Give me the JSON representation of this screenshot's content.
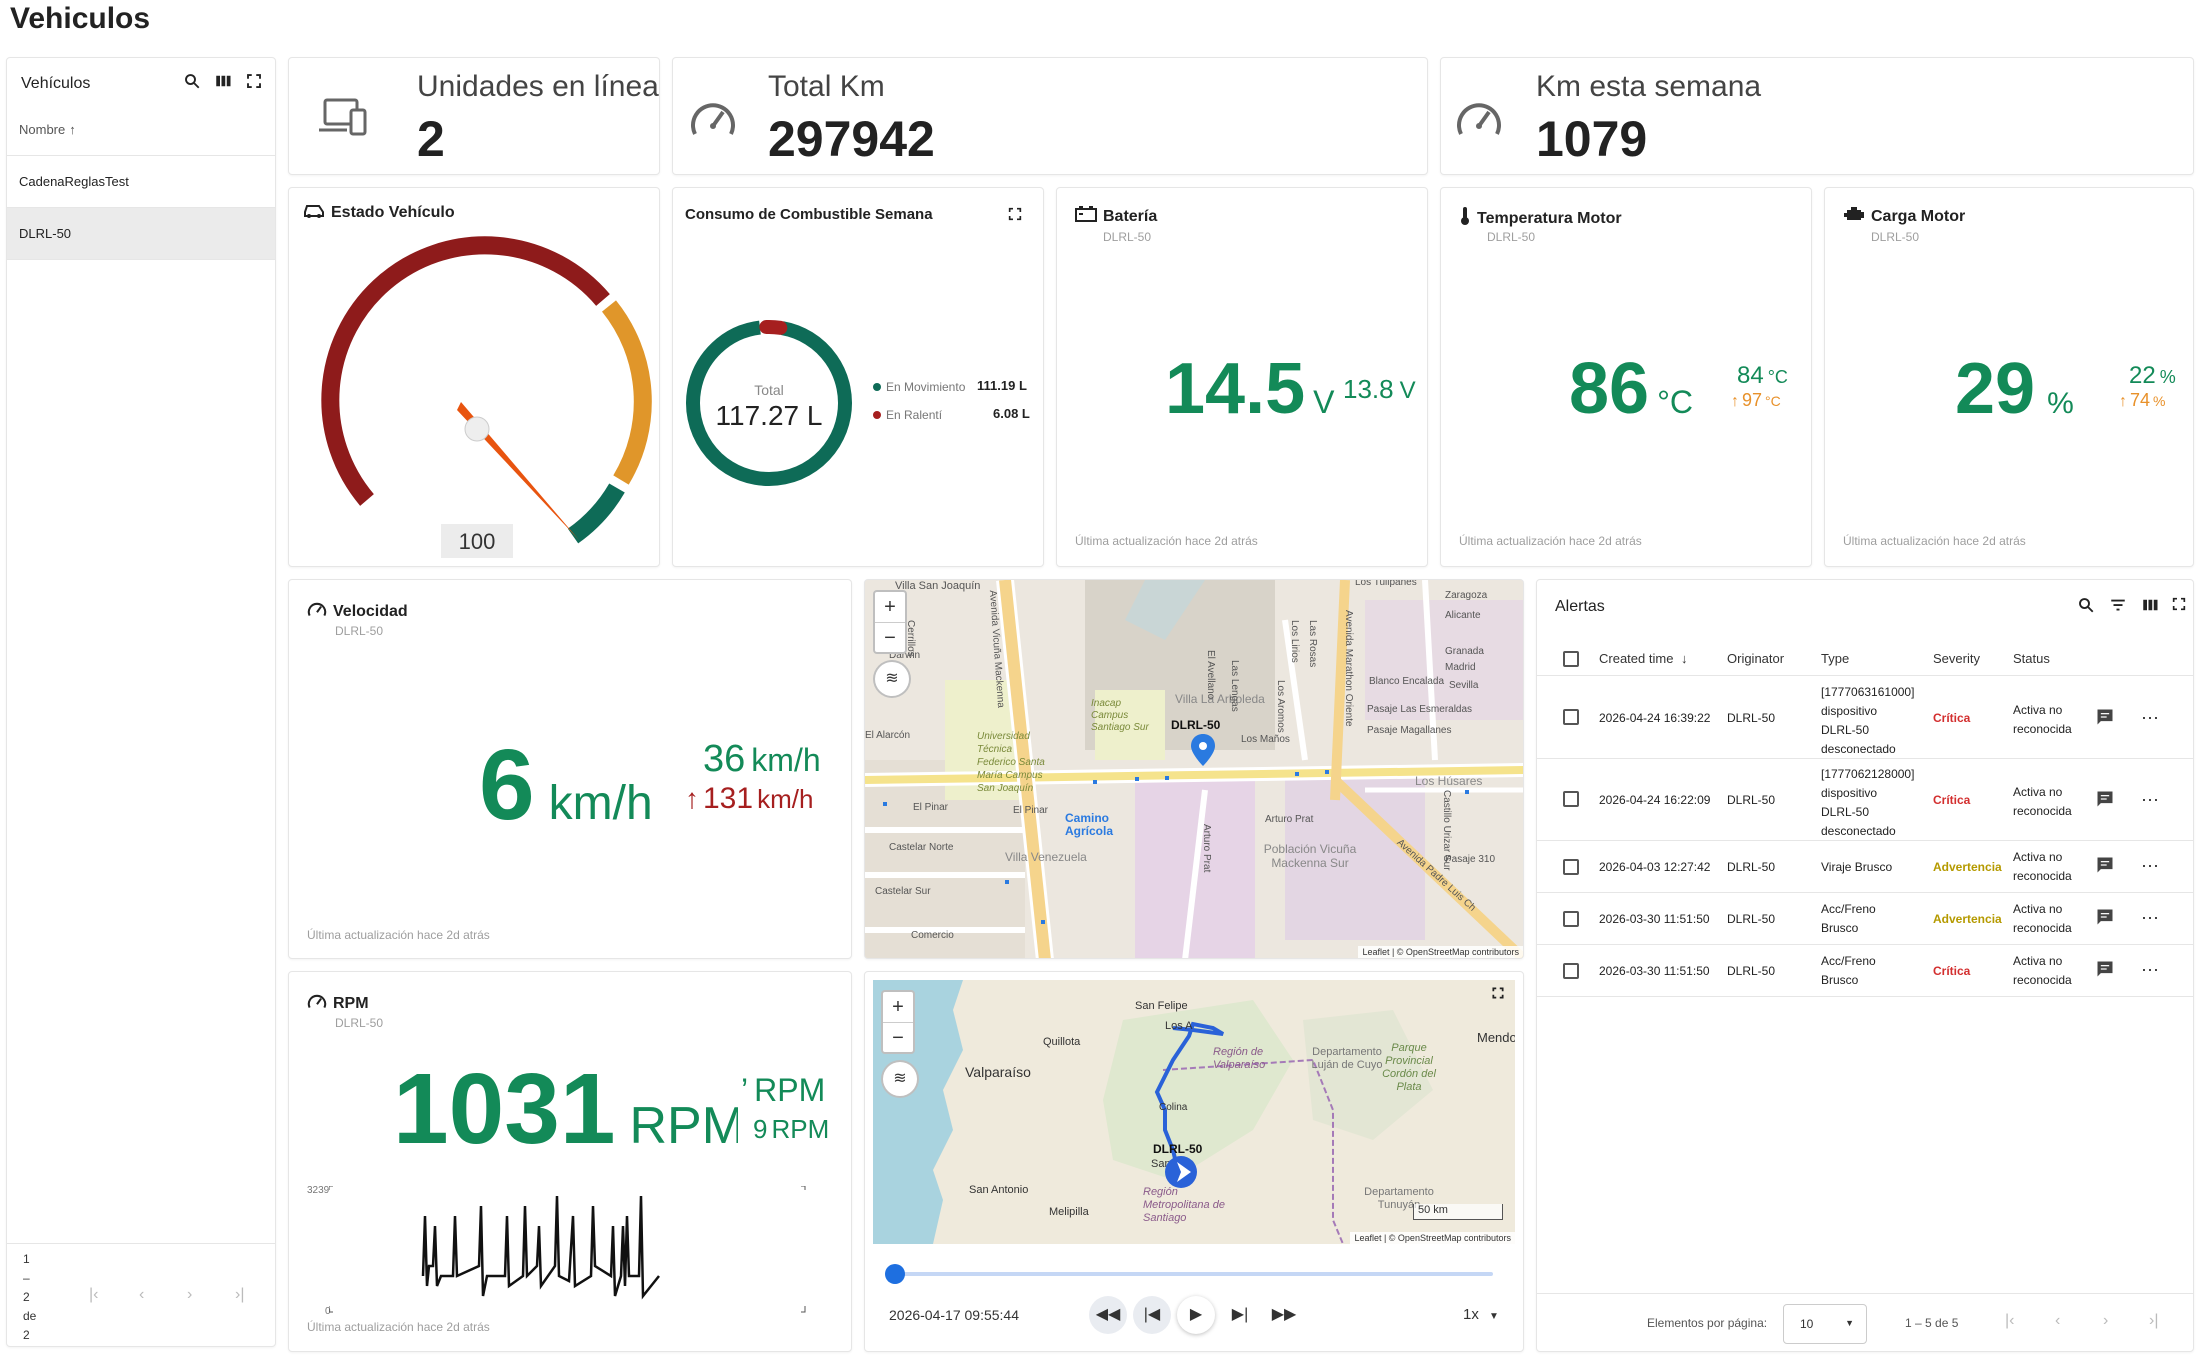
{
  "page_title": "Vehiculos",
  "sidebar": {
    "title": "Vehículos",
    "column_header": "Nombre",
    "items": [
      {
        "label": "CadenaReglasTest"
      },
      {
        "label": "DLRL-50"
      }
    ],
    "pagination": [
      "1",
      "–",
      "2",
      "de",
      "2"
    ]
  },
  "kpis": [
    {
      "label": "Unidades en línea",
      "value": "2"
    },
    {
      "label": "Total Km",
      "value": "297942"
    },
    {
      "label": "Km esta semana",
      "value": "1079"
    }
  ],
  "estado_vehiculo": {
    "title": "Estado Vehículo",
    "value": "100",
    "colors": {
      "red": "#8e1b1b",
      "orange": "#e0962a",
      "green": "#0e6b57"
    }
  },
  "combustible": {
    "title": "Consumo de Combustible Semana",
    "total_label": "Total",
    "total_value": "117.27 L",
    "legend": [
      {
        "label": "En Movimiento",
        "value": "111.19 L",
        "color": "#0e6b57"
      },
      {
        "label": "En Ralentí",
        "value": "6.08 L",
        "color": "#a61f1f"
      }
    ]
  },
  "bateria": {
    "title": "Batería",
    "device": "DLRL-50",
    "value": "14.5",
    "unit": "V",
    "secondary": "13.8",
    "secondary_unit": "V",
    "footer": "Última actualización hace 2d atrás"
  },
  "temperatura": {
    "title": "Temperatura Motor",
    "device": "DLRL-50",
    "value": "86",
    "unit": "°C",
    "min": "84",
    "min_unit": "°C",
    "max": "97",
    "max_unit": "°C",
    "footer": "Última actualización hace 2d atrás"
  },
  "carga": {
    "title": "Carga Motor",
    "device": "DLRL-50",
    "value": "29",
    "unit": "%",
    "min": "22",
    "min_unit": "%",
    "max": "74",
    "max_unit": "%",
    "footer": "Última actualización hace 2d atrás"
  },
  "velocidad": {
    "title": "Velocidad",
    "device": "DLRL-50",
    "value": "6",
    "unit": "km/h",
    "avg": "36",
    "avg_unit": "km/h",
    "max": "131",
    "max_unit": "km/h",
    "footer": "Última actualización hace 2d atrás"
  },
  "rpm": {
    "title": "RPM",
    "device": "DLRL-50",
    "value": "1031",
    "unit": "RPM",
    "second_unit": "RPM",
    "third": "9",
    "third_unit": "RPM",
    "chart_max_label": "3239",
    "chart_min_label": "0",
    "footer": "Última actualización hace 2d atrás"
  },
  "map1": {
    "labels": {
      "villa_san_joaquin": "Villa San Joaquín",
      "cerrillos": "Cerrillos",
      "darwin": "Darwin",
      "alarcon": "El Alarcón",
      "universidad": "Universidad Técnica Federico Santa María Campus San Joaquín",
      "el_pinar": "El Pinar",
      "el_pinar2": "El Pinar",
      "castelar_norte": "Castelar Norte",
      "castelar_sur": "Castelar Sur",
      "comercio": "Comercio",
      "villa_venezuela": "Villa Venezuela",
      "camino_agricola": "Camino Agrícola",
      "inacap": "Inacap Campus Santiago Sur",
      "villa_la_arboleda": "Villa La Arboleda",
      "los_manos": "Los Maños",
      "los_tulipanes": "Los Tulipanes",
      "zaragoza": "Zaragoza",
      "alicante": "Alicante",
      "granada": "Granada",
      "madrid": "Madrid",
      "sevilla": "Sevilla",
      "blanco_encalada": "Blanco Encalada",
      "pasaje_esmeraldas": "Pasaje Las Esmeraldas",
      "pasaje_magallanes": "Pasaje Magallanes",
      "los_husares": "Los Húsares",
      "castillo_urizar": "Castillo Urizar Sur",
      "pasaje_310": "Pasaje 310",
      "arturo_prat": "Arturo Prat",
      "arturo_prat2": "Arturo Prat",
      "poblacion_vicuna": "Población Vicuña Mackenna Sur",
      "av_vicuna": "Avenida Vicuña Mackenna",
      "av_marathon": "Avenida Marathon Oriente",
      "av_padre": "Avenida Padre Luis Ch",
      "el_avellano": "El Avellano",
      "las_rosas": "Las Rosas",
      "los_lirios": "Los Lirios",
      "las_lengas": "Las Lengas",
      "los_aromos": "Los Aromos",
      "marker_label": "DLRL-50"
    },
    "attribution": "Leaflet | © OpenStreetMap contributors"
  },
  "map2": {
    "labels": {
      "valparaiso": "Valparaíso",
      "quillota": "Quillota",
      "san_felipe": "San Felipe",
      "los_andes": "Los A",
      "region_valparaiso": "Región de Valparaíso",
      "departamento_lujan": "Departamento Luján de Cuyo",
      "parque": "Parque Provincial Cordón del Plata",
      "mendoza": "Mendo",
      "colina": "Colina",
      "santiago": "Santiago",
      "region_metropolitana": "Región Metropolitana de Santiago",
      "san_antonio": "San Antonio",
      "melipilla": "Melipilla",
      "tunuyan": "Departamento Tunuyán",
      "marker_label": "DLRL-50",
      "scale": "50 km"
    },
    "attribution": "Leaflet | © OpenStreetMap contributors",
    "timestamp": "2026-04-17 09:55:44",
    "speed": "1x"
  },
  "alertas": {
    "title": "Alertas",
    "headers": {
      "created": "Created time",
      "originator": "Originator",
      "type": "Type",
      "severity": "Severity",
      "status": "Status"
    },
    "rows": [
      {
        "time": "2026-04-24 16:39:22",
        "originator": "DLRL-50",
        "type_lines": [
          "[1777063161000]",
          "dispositivo",
          "DLRL-50",
          "desconectado"
        ],
        "severity": "Crítica",
        "sev": "crit",
        "status_lines": [
          "Activa no",
          "reconocida"
        ]
      },
      {
        "time": "2026-04-24 16:22:09",
        "originator": "DLRL-50",
        "type_lines": [
          "[1777062128000]",
          "dispositivo",
          "DLRL-50",
          "desconectado"
        ],
        "severity": "Crítica",
        "sev": "crit",
        "status_lines": [
          "Activa no",
          "reconocida"
        ]
      },
      {
        "time": "2026-04-03 12:27:42",
        "originator": "DLRL-50",
        "type_lines": [
          "Viraje Brusco"
        ],
        "severity": "Advertencia",
        "sev": "warn",
        "status_lines": [
          "Activa no",
          "reconocida"
        ]
      },
      {
        "time": "2026-03-30 11:51:50",
        "originator": "DLRL-50",
        "type_lines": [
          "Acc/Freno",
          "Brusco"
        ],
        "severity": "Advertencia",
        "sev": "warn",
        "status_lines": [
          "Activa no",
          "reconocida"
        ]
      },
      {
        "time": "2026-03-30 11:51:50",
        "originator": "DLRL-50",
        "type_lines": [
          "Acc/Freno",
          "Brusco"
        ],
        "severity": "Crítica",
        "sev": "crit",
        "status_lines": [
          "Activa no",
          "reconocida"
        ]
      }
    ],
    "footer": {
      "per_page_label": "Elementos por página:",
      "per_page_value": "10",
      "range": "1 – 5 de 5"
    }
  }
}
